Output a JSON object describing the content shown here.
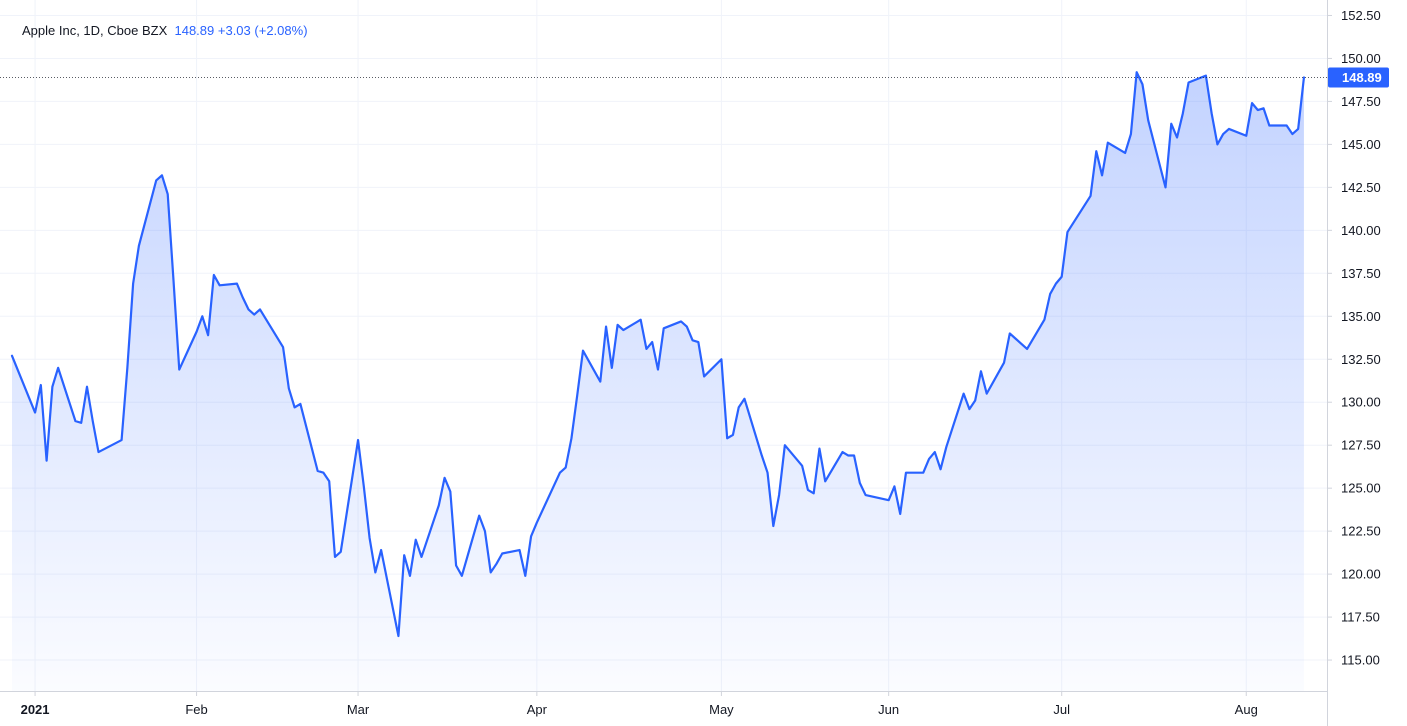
{
  "legend": {
    "symbol": "Apple Inc, 1D, Cboe BZX",
    "last": "148.89",
    "change": "+3.03",
    "change_pct": "(+2.08%)"
  },
  "colors": {
    "line": "#2962ff",
    "area_top": "#2962ff",
    "grid": "#f0f3fa",
    "axis_line": "#d1d4dc",
    "price_label_bg": "#2962ff"
  },
  "chart_data": {
    "type": "area",
    "title": "Apple Inc, 1D, Cboe BZX",
    "last_price": 148.89,
    "last_price_label": "148.89",
    "ylim": [
      113.2,
      153.4
    ],
    "x_range": [
      "2020-12-31",
      "2021-08-16"
    ],
    "grid": true,
    "y_ticks": [
      "115.00",
      "117.50",
      "120.00",
      "122.50",
      "125.00",
      "127.50",
      "130.00",
      "132.50",
      "135.00",
      "137.50",
      "140.00",
      "142.50",
      "145.00",
      "147.50",
      "150.00",
      "152.50"
    ],
    "x_ticks": [
      {
        "label": "2021",
        "date": "2021-01-04",
        "bold": true
      },
      {
        "label": "Feb",
        "date": "2021-02-01",
        "bold": false
      },
      {
        "label": "Mar",
        "date": "2021-03-01",
        "bold": false
      },
      {
        "label": "Apr",
        "date": "2021-04-01",
        "bold": false
      },
      {
        "label": "May",
        "date": "2021-05-03",
        "bold": false
      },
      {
        "label": "Jun",
        "date": "2021-06-01",
        "bold": false
      },
      {
        "label": "Jul",
        "date": "2021-07-01",
        "bold": false
      },
      {
        "label": "Aug",
        "date": "2021-08-02",
        "bold": false
      }
    ],
    "series": [
      {
        "values": [
          [
            "2020-12-31",
            132.7
          ],
          [
            "2021-01-04",
            129.4
          ],
          [
            "2021-01-05",
            131.0
          ],
          [
            "2021-01-06",
            126.6
          ],
          [
            "2021-01-07",
            130.9
          ],
          [
            "2021-01-08",
            132.0
          ],
          [
            "2021-01-11",
            128.9
          ],
          [
            "2021-01-12",
            128.8
          ],
          [
            "2021-01-13",
            130.9
          ],
          [
            "2021-01-14",
            128.9
          ],
          [
            "2021-01-15",
            127.1
          ],
          [
            "2021-01-19",
            127.8
          ],
          [
            "2021-01-20",
            132.0
          ],
          [
            "2021-01-21",
            136.9
          ],
          [
            "2021-01-22",
            139.1
          ],
          [
            "2021-01-25",
            142.9
          ],
          [
            "2021-01-26",
            143.2
          ],
          [
            "2021-01-27",
            142.1
          ],
          [
            "2021-01-28",
            137.1
          ],
          [
            "2021-01-29",
            131.9
          ],
          [
            "2021-02-01",
            134.1
          ],
          [
            "2021-02-02",
            135.0
          ],
          [
            "2021-02-03",
            133.9
          ],
          [
            "2021-02-04",
            137.4
          ],
          [
            "2021-02-05",
            136.8
          ],
          [
            "2021-02-08",
            136.9
          ],
          [
            "2021-02-09",
            136.1
          ],
          [
            "2021-02-10",
            135.4
          ],
          [
            "2021-02-11",
            135.1
          ],
          [
            "2021-02-12",
            135.4
          ],
          [
            "2021-02-16",
            133.2
          ],
          [
            "2021-02-17",
            130.8
          ],
          [
            "2021-02-18",
            129.7
          ],
          [
            "2021-02-19",
            129.9
          ],
          [
            "2021-02-22",
            126.0
          ],
          [
            "2021-02-23",
            125.9
          ],
          [
            "2021-02-24",
            125.4
          ],
          [
            "2021-02-25",
            121.0
          ],
          [
            "2021-02-26",
            121.3
          ],
          [
            "2021-03-01",
            127.8
          ],
          [
            "2021-03-02",
            125.1
          ],
          [
            "2021-03-03",
            122.1
          ],
          [
            "2021-03-04",
            120.1
          ],
          [
            "2021-03-05",
            121.4
          ],
          [
            "2021-03-08",
            116.4
          ],
          [
            "2021-03-09",
            121.1
          ],
          [
            "2021-03-10",
            119.9
          ],
          [
            "2021-03-11",
            122.0
          ],
          [
            "2021-03-12",
            121.0
          ],
          [
            "2021-03-15",
            124.0
          ],
          [
            "2021-03-16",
            125.6
          ],
          [
            "2021-03-17",
            124.8
          ],
          [
            "2021-03-18",
            120.5
          ],
          [
            "2021-03-19",
            119.9
          ],
          [
            "2021-03-22",
            123.4
          ],
          [
            "2021-03-23",
            122.5
          ],
          [
            "2021-03-24",
            120.1
          ],
          [
            "2021-03-25",
            120.6
          ],
          [
            "2021-03-26",
            121.2
          ],
          [
            "2021-03-29",
            121.4
          ],
          [
            "2021-03-30",
            119.9
          ],
          [
            "2021-03-31",
            122.2
          ],
          [
            "2021-04-01",
            123.0
          ],
          [
            "2021-04-05",
            125.9
          ],
          [
            "2021-04-06",
            126.2
          ],
          [
            "2021-04-07",
            127.9
          ],
          [
            "2021-04-08",
            130.4
          ],
          [
            "2021-04-09",
            133.0
          ],
          [
            "2021-04-12",
            131.2
          ],
          [
            "2021-04-13",
            134.4
          ],
          [
            "2021-04-14",
            132.0
          ],
          [
            "2021-04-15",
            134.5
          ],
          [
            "2021-04-16",
            134.2
          ],
          [
            "2021-04-19",
            134.8
          ],
          [
            "2021-04-20",
            133.1
          ],
          [
            "2021-04-21",
            133.5
          ],
          [
            "2021-04-22",
            131.9
          ],
          [
            "2021-04-23",
            134.3
          ],
          [
            "2021-04-26",
            134.7
          ],
          [
            "2021-04-27",
            134.4
          ],
          [
            "2021-04-28",
            133.6
          ],
          [
            "2021-04-29",
            133.5
          ],
          [
            "2021-04-30",
            131.5
          ],
          [
            "2021-05-03",
            132.5
          ],
          [
            "2021-05-04",
            127.9
          ],
          [
            "2021-05-05",
            128.1
          ],
          [
            "2021-05-06",
            129.7
          ],
          [
            "2021-05-07",
            130.2
          ],
          [
            "2021-05-10",
            126.9
          ],
          [
            "2021-05-11",
            125.9
          ],
          [
            "2021-05-12",
            122.8
          ],
          [
            "2021-05-13",
            124.6
          ],
          [
            "2021-05-14",
            127.5
          ],
          [
            "2021-05-17",
            126.3
          ],
          [
            "2021-05-18",
            124.9
          ],
          [
            "2021-05-19",
            124.7
          ],
          [
            "2021-05-20",
            127.3
          ],
          [
            "2021-05-21",
            125.4
          ],
          [
            "2021-05-24",
            127.1
          ],
          [
            "2021-05-25",
            126.9
          ],
          [
            "2021-05-26",
            126.9
          ],
          [
            "2021-05-27",
            125.3
          ],
          [
            "2021-05-28",
            124.6
          ],
          [
            "2021-06-01",
            124.3
          ],
          [
            "2021-06-02",
            125.1
          ],
          [
            "2021-06-03",
            123.5
          ],
          [
            "2021-06-04",
            125.9
          ],
          [
            "2021-06-07",
            125.9
          ],
          [
            "2021-06-08",
            126.7
          ],
          [
            "2021-06-09",
            127.1
          ],
          [
            "2021-06-10",
            126.1
          ],
          [
            "2021-06-11",
            127.4
          ],
          [
            "2021-06-14",
            130.5
          ],
          [
            "2021-06-15",
            129.6
          ],
          [
            "2021-06-16",
            130.1
          ],
          [
            "2021-06-17",
            131.8
          ],
          [
            "2021-06-18",
            130.5
          ],
          [
            "2021-06-21",
            132.3
          ],
          [
            "2021-06-22",
            134.0
          ],
          [
            "2021-06-23",
            133.7
          ],
          [
            "2021-06-24",
            133.4
          ],
          [
            "2021-06-25",
            133.1
          ],
          [
            "2021-06-28",
            134.8
          ],
          [
            "2021-06-29",
            136.3
          ],
          [
            "2021-06-30",
            136.9
          ],
          [
            "2021-07-01",
            137.3
          ],
          [
            "2021-07-02",
            139.9
          ],
          [
            "2021-07-06",
            142.0
          ],
          [
            "2021-07-07",
            144.6
          ],
          [
            "2021-07-08",
            143.2
          ],
          [
            "2021-07-09",
            145.1
          ],
          [
            "2021-07-12",
            144.5
          ],
          [
            "2021-07-13",
            145.6
          ],
          [
            "2021-07-14",
            149.2
          ],
          [
            "2021-07-15",
            148.5
          ],
          [
            "2021-07-16",
            146.4
          ],
          [
            "2021-07-19",
            142.5
          ],
          [
            "2021-07-20",
            146.2
          ],
          [
            "2021-07-21",
            145.4
          ],
          [
            "2021-07-22",
            146.8
          ],
          [
            "2021-07-23",
            148.6
          ],
          [
            "2021-07-26",
            149.0
          ],
          [
            "2021-07-27",
            146.8
          ],
          [
            "2021-07-28",
            145.0
          ],
          [
            "2021-07-29",
            145.6
          ],
          [
            "2021-07-30",
            145.9
          ],
          [
            "2021-08-02",
            145.5
          ],
          [
            "2021-08-03",
            147.4
          ],
          [
            "2021-08-04",
            147.0
          ],
          [
            "2021-08-05",
            147.1
          ],
          [
            "2021-08-06",
            146.1
          ],
          [
            "2021-08-09",
            146.1
          ],
          [
            "2021-08-10",
            145.6
          ],
          [
            "2021-08-11",
            145.9
          ],
          [
            "2021-08-12",
            148.89
          ]
        ]
      }
    ]
  }
}
